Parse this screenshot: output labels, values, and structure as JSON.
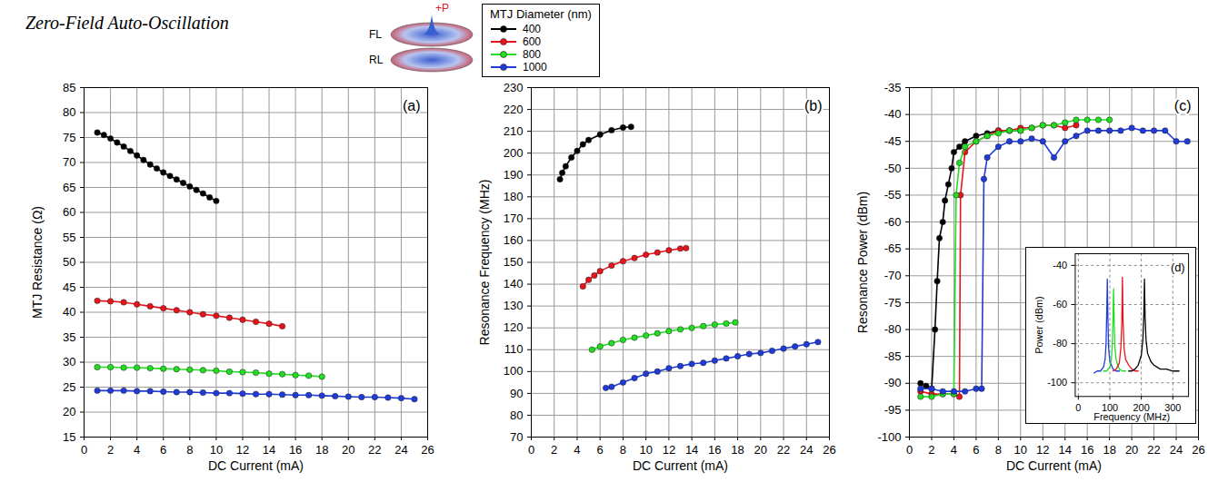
{
  "title": "Zero-Field Auto-Oscillation",
  "schematic": {
    "upper_layer": "FL",
    "lower_layer": "RL",
    "peak": "+P"
  },
  "legend_title": "MTJ Diameter (nm)",
  "chart_data": [
    {
      "type": "line",
      "title": "(a)",
      "x_label": "DC Current (mA)",
      "y_label": "MTJ Resistance (Ω)",
      "xlim": [
        0,
        26
      ],
      "xticks": [
        0,
        2,
        4,
        6,
        8,
        10,
        12,
        14,
        16,
        18,
        20,
        22,
        24,
        26
      ],
      "ylim": [
        15,
        85
      ],
      "yticks": [
        15,
        20,
        25,
        30,
        35,
        40,
        45,
        50,
        55,
        60,
        65,
        70,
        75,
        80,
        85
      ],
      "grid": true,
      "marker": "circle",
      "legend": "top",
      "series": [
        {
          "name": "400",
          "color": "#000000",
          "x": [
            1,
            1.5,
            2,
            2.5,
            3,
            3.5,
            4,
            4.5,
            5,
            5.5,
            6,
            6.5,
            7,
            7.5,
            8,
            8.5,
            9,
            9.5,
            10
          ],
          "values": [
            76,
            75.5,
            74.8,
            74,
            73.2,
            72.3,
            71.4,
            70.5,
            69.6,
            68.8,
            68,
            67.3,
            66.6,
            65.9,
            65.2,
            64.5,
            63.8,
            63,
            62.3
          ]
        },
        {
          "name": "600",
          "color": "#e8141c",
          "x": [
            1,
            2,
            3,
            4,
            5,
            6,
            7,
            8,
            9,
            10,
            11,
            12,
            13,
            14,
            15
          ],
          "values": [
            42.3,
            42.2,
            42,
            41.6,
            41.2,
            40.8,
            40.4,
            40,
            39.6,
            39.3,
            38.9,
            38.5,
            38.1,
            37.7,
            37.2
          ]
        },
        {
          "name": "800",
          "color": "#22dd22",
          "x": [
            1,
            2,
            3,
            4,
            5,
            6,
            7,
            8,
            9,
            10,
            11,
            12,
            13,
            14,
            15,
            16,
            17,
            18
          ],
          "values": [
            29,
            29,
            28.9,
            28.9,
            28.8,
            28.7,
            28.6,
            28.5,
            28.4,
            28.3,
            28.1,
            28,
            27.9,
            27.7,
            27.6,
            27.4,
            27.3,
            27.1
          ]
        },
        {
          "name": "1000",
          "color": "#1f3bd9",
          "x": [
            1,
            2,
            3,
            4,
            5,
            6,
            7,
            8,
            9,
            10,
            11,
            12,
            13,
            14,
            15,
            16,
            17,
            18,
            19,
            20,
            21,
            22,
            23,
            24,
            25
          ],
          "values": [
            24.3,
            24.3,
            24.3,
            24.2,
            24.2,
            24.1,
            24,
            24,
            23.9,
            23.8,
            23.8,
            23.7,
            23.6,
            23.6,
            23.5,
            23.4,
            23.4,
            23.3,
            23.2,
            23.1,
            23,
            23,
            22.9,
            22.8,
            22.6
          ]
        }
      ]
    },
    {
      "type": "line",
      "title": "(b)",
      "x_label": "DC Current (mA)",
      "y_label": "Resonance Frequency (MHz)",
      "xlim": [
        0,
        26
      ],
      "xticks": [
        0,
        2,
        4,
        6,
        8,
        10,
        12,
        14,
        16,
        18,
        20,
        22,
        24,
        26
      ],
      "ylim": [
        70,
        230
      ],
      "yticks": [
        70,
        80,
        90,
        100,
        110,
        120,
        130,
        140,
        150,
        160,
        170,
        180,
        190,
        200,
        210,
        220,
        230
      ],
      "grid": true,
      "marker": "circle",
      "series": [
        {
          "name": "400",
          "color": "#000000",
          "x": [
            2.5,
            2.7,
            3,
            3.5,
            4,
            4.5,
            5,
            6,
            7,
            8,
            8.7
          ],
          "values": [
            188,
            191,
            194,
            198,
            201,
            204,
            206,
            208.5,
            210.5,
            211.7,
            212
          ]
        },
        {
          "name": "600",
          "color": "#e8141c",
          "x": [
            4.5,
            5,
            5.5,
            6,
            7,
            8,
            9,
            10,
            11,
            12,
            13,
            13.5
          ],
          "values": [
            139,
            142,
            144,
            146,
            148.5,
            150.5,
            152,
            153.5,
            154.5,
            155.5,
            156.3,
            156.5
          ]
        },
        {
          "name": "800",
          "color": "#22dd22",
          "x": [
            5.3,
            6,
            7,
            8,
            9,
            10,
            11,
            12,
            13,
            14,
            15,
            16,
            17,
            17.8
          ],
          "values": [
            110,
            111.5,
            113,
            114.5,
            115.5,
            116.5,
            117.5,
            118.5,
            119.3,
            120,
            120.8,
            121.5,
            122,
            122.5
          ]
        },
        {
          "name": "1000",
          "color": "#1f3bd9",
          "x": [
            6.5,
            7,
            8,
            9,
            10,
            11,
            12,
            13,
            14,
            15,
            16,
            17,
            18,
            19,
            20,
            21,
            22,
            23,
            24,
            25
          ],
          "values": [
            92.5,
            93,
            95,
            97,
            99,
            100,
            101.5,
            102.5,
            103.5,
            104,
            105,
            106,
            107,
            108,
            108.5,
            109.5,
            110.5,
            111.5,
            112.5,
            113.5
          ]
        }
      ]
    },
    {
      "type": "line",
      "title": "(c)",
      "x_label": "DC Current (mA)",
      "y_label": "Resonance Power (dBm)",
      "xlim": [
        0,
        26
      ],
      "xticks": [
        0,
        2,
        4,
        6,
        8,
        10,
        12,
        14,
        16,
        18,
        20,
        22,
        24,
        26
      ],
      "ylim": [
        -100,
        -35
      ],
      "yticks": [
        -100,
        -95,
        -90,
        -85,
        -80,
        -75,
        -70,
        -65,
        -60,
        -55,
        -50,
        -45,
        -40,
        -35
      ],
      "grid": true,
      "marker": "circle",
      "series": [
        {
          "name": "400",
          "color": "#000000",
          "x": [
            1,
            1.5,
            2,
            2.3,
            2.5,
            2.7,
            3,
            3.2,
            3.5,
            3.8,
            4,
            4.5,
            5,
            6,
            7,
            8,
            9,
            10
          ],
          "values": [
            -90,
            -90.5,
            -91,
            -80,
            -71,
            -63,
            -60,
            -56,
            -53,
            -50,
            -47,
            -46,
            -45,
            -44,
            -43.5,
            -43,
            -43,
            -43
          ]
        },
        {
          "name": "600",
          "color": "#e8141c",
          "x": [
            1,
            2,
            3,
            4,
            4.5,
            4.6,
            5,
            6,
            7,
            8,
            9,
            10,
            11,
            12,
            13,
            14,
            15
          ],
          "values": [
            -91.5,
            -92,
            -92,
            -92,
            -92.5,
            -55,
            -47,
            -45,
            -44,
            -43,
            -43,
            -42.5,
            -42.5,
            -42,
            -42,
            -42.5,
            -42
          ]
        },
        {
          "name": "800",
          "color": "#22dd22",
          "x": [
            1,
            2,
            3,
            4,
            4.2,
            4.5,
            5,
            6,
            7,
            8,
            9,
            10,
            11,
            12,
            13,
            14,
            15,
            16,
            17,
            18
          ],
          "values": [
            -92.5,
            -92.5,
            -92,
            -92,
            -55,
            -49,
            -46,
            -45,
            -44,
            -43.5,
            -43,
            -43,
            -42.5,
            -42,
            -42,
            -41.5,
            -41,
            -41,
            -41,
            -41
          ]
        },
        {
          "name": "1000",
          "color": "#1f3bd9",
          "x": [
            1,
            2,
            3,
            4,
            5,
            6,
            6.5,
            6.7,
            7,
            8,
            9,
            10,
            11,
            12,
            13,
            14,
            15,
            16,
            17,
            18,
            19,
            20,
            21,
            22,
            23,
            24,
            25
          ],
          "values": [
            -91,
            -91,
            -91.5,
            -91.5,
            -91.5,
            -91,
            -91,
            -52,
            -48,
            -46,
            -45,
            -45,
            -44.5,
            -45,
            -48,
            -45,
            -44,
            -43,
            -43,
            -43,
            -43,
            -42.5,
            -43,
            -43,
            -43,
            -45,
            -45
          ]
        }
      ]
    },
    {
      "type": "line",
      "title": "(d)",
      "x_label": "Frequency (MHz)",
      "y_label": "Power (dBm)",
      "xlim": [
        -10,
        350
      ],
      "xticks": [
        0,
        100,
        200,
        300
      ],
      "ylim": [
        -107,
        -34
      ],
      "yticks": [
        -100,
        -80,
        -60,
        -40
      ],
      "grid": true,
      "marker": "none",
      "series": [
        {
          "name": "1000",
          "color": "#1f3bd9",
          "x": [
            50,
            60,
            70,
            80,
            85,
            88,
            90,
            92,
            94,
            96,
            100,
            105,
            110,
            120,
            130
          ],
          "values": [
            -95,
            -94,
            -94,
            -92,
            -88,
            -80,
            -65,
            -47,
            -68,
            -82,
            -89,
            -91,
            -93,
            -94,
            -94
          ]
        },
        {
          "name": "800",
          "color": "#22dd22",
          "x": [
            80,
            90,
            100,
            105,
            108,
            110,
            112,
            114,
            116,
            120,
            125,
            130,
            140,
            150
          ],
          "values": [
            -94,
            -94,
            -92,
            -88,
            -80,
            -68,
            -52,
            -70,
            -82,
            -88,
            -91,
            -93,
            -94,
            -94
          ]
        },
        {
          "name": "600",
          "color": "#e8141c",
          "x": [
            110,
            120,
            130,
            135,
            138,
            140,
            142,
            145,
            150,
            160,
            170,
            180,
            190
          ],
          "values": [
            -94,
            -93,
            -90,
            -82,
            -70,
            -46,
            -68,
            -82,
            -88,
            -91,
            -93,
            -94,
            -94
          ]
        },
        {
          "name": "400",
          "color": "#000000",
          "x": [
            160,
            170,
            180,
            190,
            200,
            205,
            208,
            210,
            212,
            215,
            220,
            230,
            240,
            260,
            280,
            300,
            320
          ],
          "values": [
            -94,
            -94,
            -93,
            -91,
            -86,
            -78,
            -65,
            -47,
            -66,
            -78,
            -85,
            -89,
            -91,
            -93,
            -93,
            -94,
            -94
          ]
        }
      ]
    }
  ]
}
